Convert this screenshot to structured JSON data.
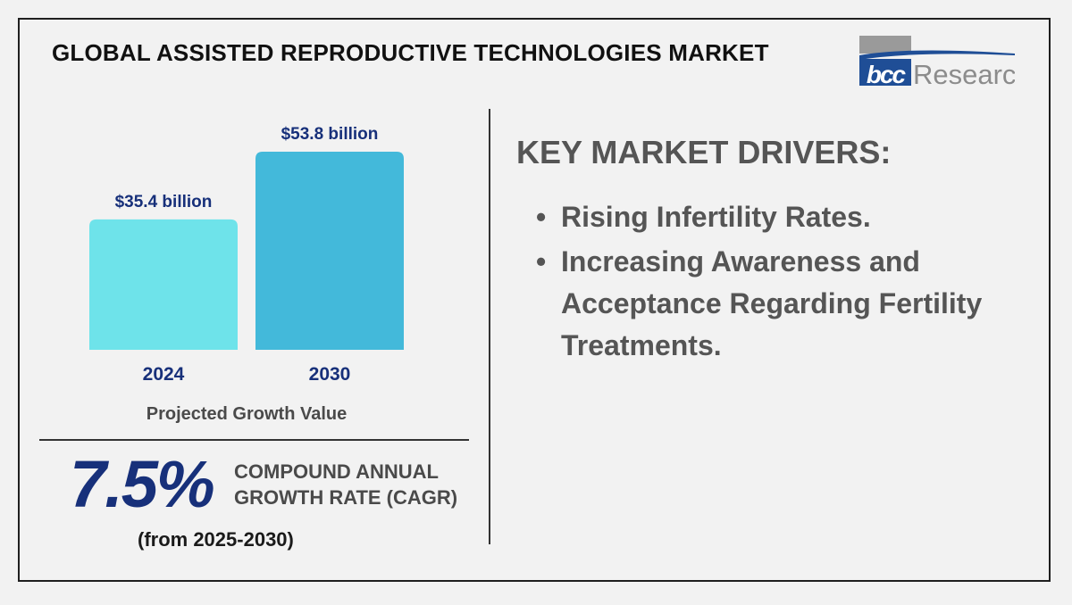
{
  "header": {
    "title": "GLOBAL ASSISTED REPRODUCTIVE TECHNOLOGIES MARKET",
    "logo": {
      "mark": "bcc",
      "wordmark": "Research",
      "icon": "bcc-research-logo"
    }
  },
  "chart_data": {
    "type": "bar",
    "categories": [
      "2024",
      "2030"
    ],
    "values": [
      35.4,
      53.8
    ],
    "data_labels": [
      "$35.4 billion",
      "$53.8 billion"
    ],
    "xlabel": "Projected Growth Value",
    "ylabel": "",
    "grid": false,
    "colors": [
      "#6ee3ea",
      "#43b9da"
    ],
    "label_color": "#17307a"
  },
  "cagr": {
    "value": "7.5%",
    "label_line1": "COMPOUND ANNUAL",
    "label_line2": "GROWTH RATE (CAGR)",
    "period": "(from 2025-2030)"
  },
  "drivers": {
    "heading": "KEY MARKET DRIVERS:",
    "items": [
      {
        "text": "Rising Infertility Rates."
      },
      {
        "text": "Increasing Awareness and Acceptance Regarding Fertility Treatments."
      }
    ]
  },
  "colors": {
    "background": "#f2f2f2",
    "accent_dark_blue": "#17307a",
    "text_gray": "#555555",
    "logo_blue": "#1f4e96",
    "logo_gray": "#8c8c8c"
  }
}
